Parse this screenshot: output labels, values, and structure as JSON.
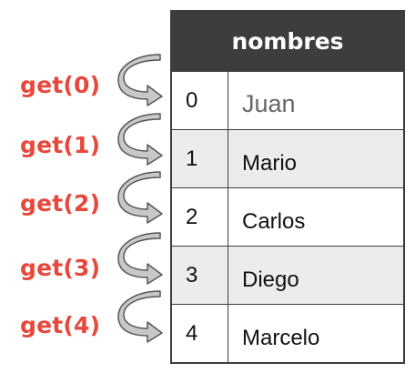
{
  "table": {
    "header": "nombres",
    "rows": [
      {
        "index": "0",
        "value": "Juan"
      },
      {
        "index": "1",
        "value": "Mario"
      },
      {
        "index": "2",
        "value": "Carlos"
      },
      {
        "index": "3",
        "value": "Diego"
      },
      {
        "index": "4",
        "value": "Marcelo"
      }
    ]
  },
  "calls": [
    "get(0)",
    "get(1)",
    "get(2)",
    "get(3)",
    "get(4)"
  ],
  "colors": {
    "header_bg": "#3d3d3d",
    "call_text": "#e8473b",
    "alt_row": "#ececec",
    "arrow_fill": "#c8c8c8"
  }
}
